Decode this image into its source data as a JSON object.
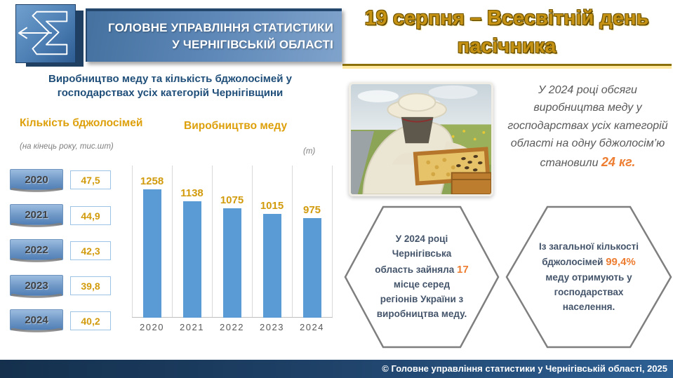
{
  "brand": {
    "logo_name": "statistics-sigma-logo",
    "org_line1": "ГОЛОВНЕ УПРАВЛІННЯ СТАТИСТИКИ",
    "org_line2": "У ЧЕРНІГІВСЬКІЙ ОБЛАСТІ"
  },
  "banner": {
    "title_line1": "19 серпня – Всесвітній день",
    "title_line2": "пасічника"
  },
  "left_section": {
    "title_line1": "Виробництво меду та кількість бджолосімей у",
    "title_line2": "господарствах усіх категорій Чернігівщини",
    "colonies": {
      "heading": "Кількість бджолосімей",
      "unit_note": "(на кінець року, тис.шт)",
      "rows": [
        {
          "year": "2020",
          "value": "47,5"
        },
        {
          "year": "2021",
          "value": "44,9"
        },
        {
          "year": "2022",
          "value": "42,3"
        },
        {
          "year": "2023",
          "value": "39,8"
        },
        {
          "year": "2024",
          "value": "40,2"
        }
      ]
    },
    "honey": {
      "heading": "Виробництво меду",
      "unit_note": "(т)"
    }
  },
  "chart_data": {
    "type": "bar",
    "title": "Виробництво меду",
    "ylabel": "т",
    "categories": [
      "2020",
      "2021",
      "2022",
      "2023",
      "2024"
    ],
    "values": [
      1258,
      1138,
      1075,
      1015,
      975
    ],
    "bar_color": "#5B9BD5",
    "ylim": [
      0,
      1350
    ],
    "grid": "vertical category separators",
    "data_labels": true,
    "legend": "none"
  },
  "right_section": {
    "photo_name": "beekeeper-photo",
    "summary": {
      "text_before": "У 2024 році обсяги виробництва меду у господарствах усіх категорій області на одну бджолосім’ю становили ",
      "highlight": "24 кг."
    },
    "hex1": {
      "text_before": "У 2024 році Чернігівська область зайняла ",
      "highlight": "17",
      "text_after": " місце серед регіонів України з виробництва меду."
    },
    "hex2": {
      "text_before": "Із загальної кількості бджолосімей ",
      "highlight": "99,4%",
      "text_after": " меду отримують у господарствах населення."
    }
  },
  "footer": {
    "copyright": "© Головне управління статистики у Чернігівській області, 2025"
  },
  "colors": {
    "accent_gold": "#DDA00B",
    "accent_orange": "#ED7D31",
    "bar_blue": "#5B9BD5",
    "title_navy": "#1F4E79",
    "banner_gold": "#C69214",
    "footer_navy_left": "#14304D",
    "footer_navy_right": "#2E6094",
    "hex_border_gray": "#7F7F7F",
    "hex_text": "#44546A"
  }
}
